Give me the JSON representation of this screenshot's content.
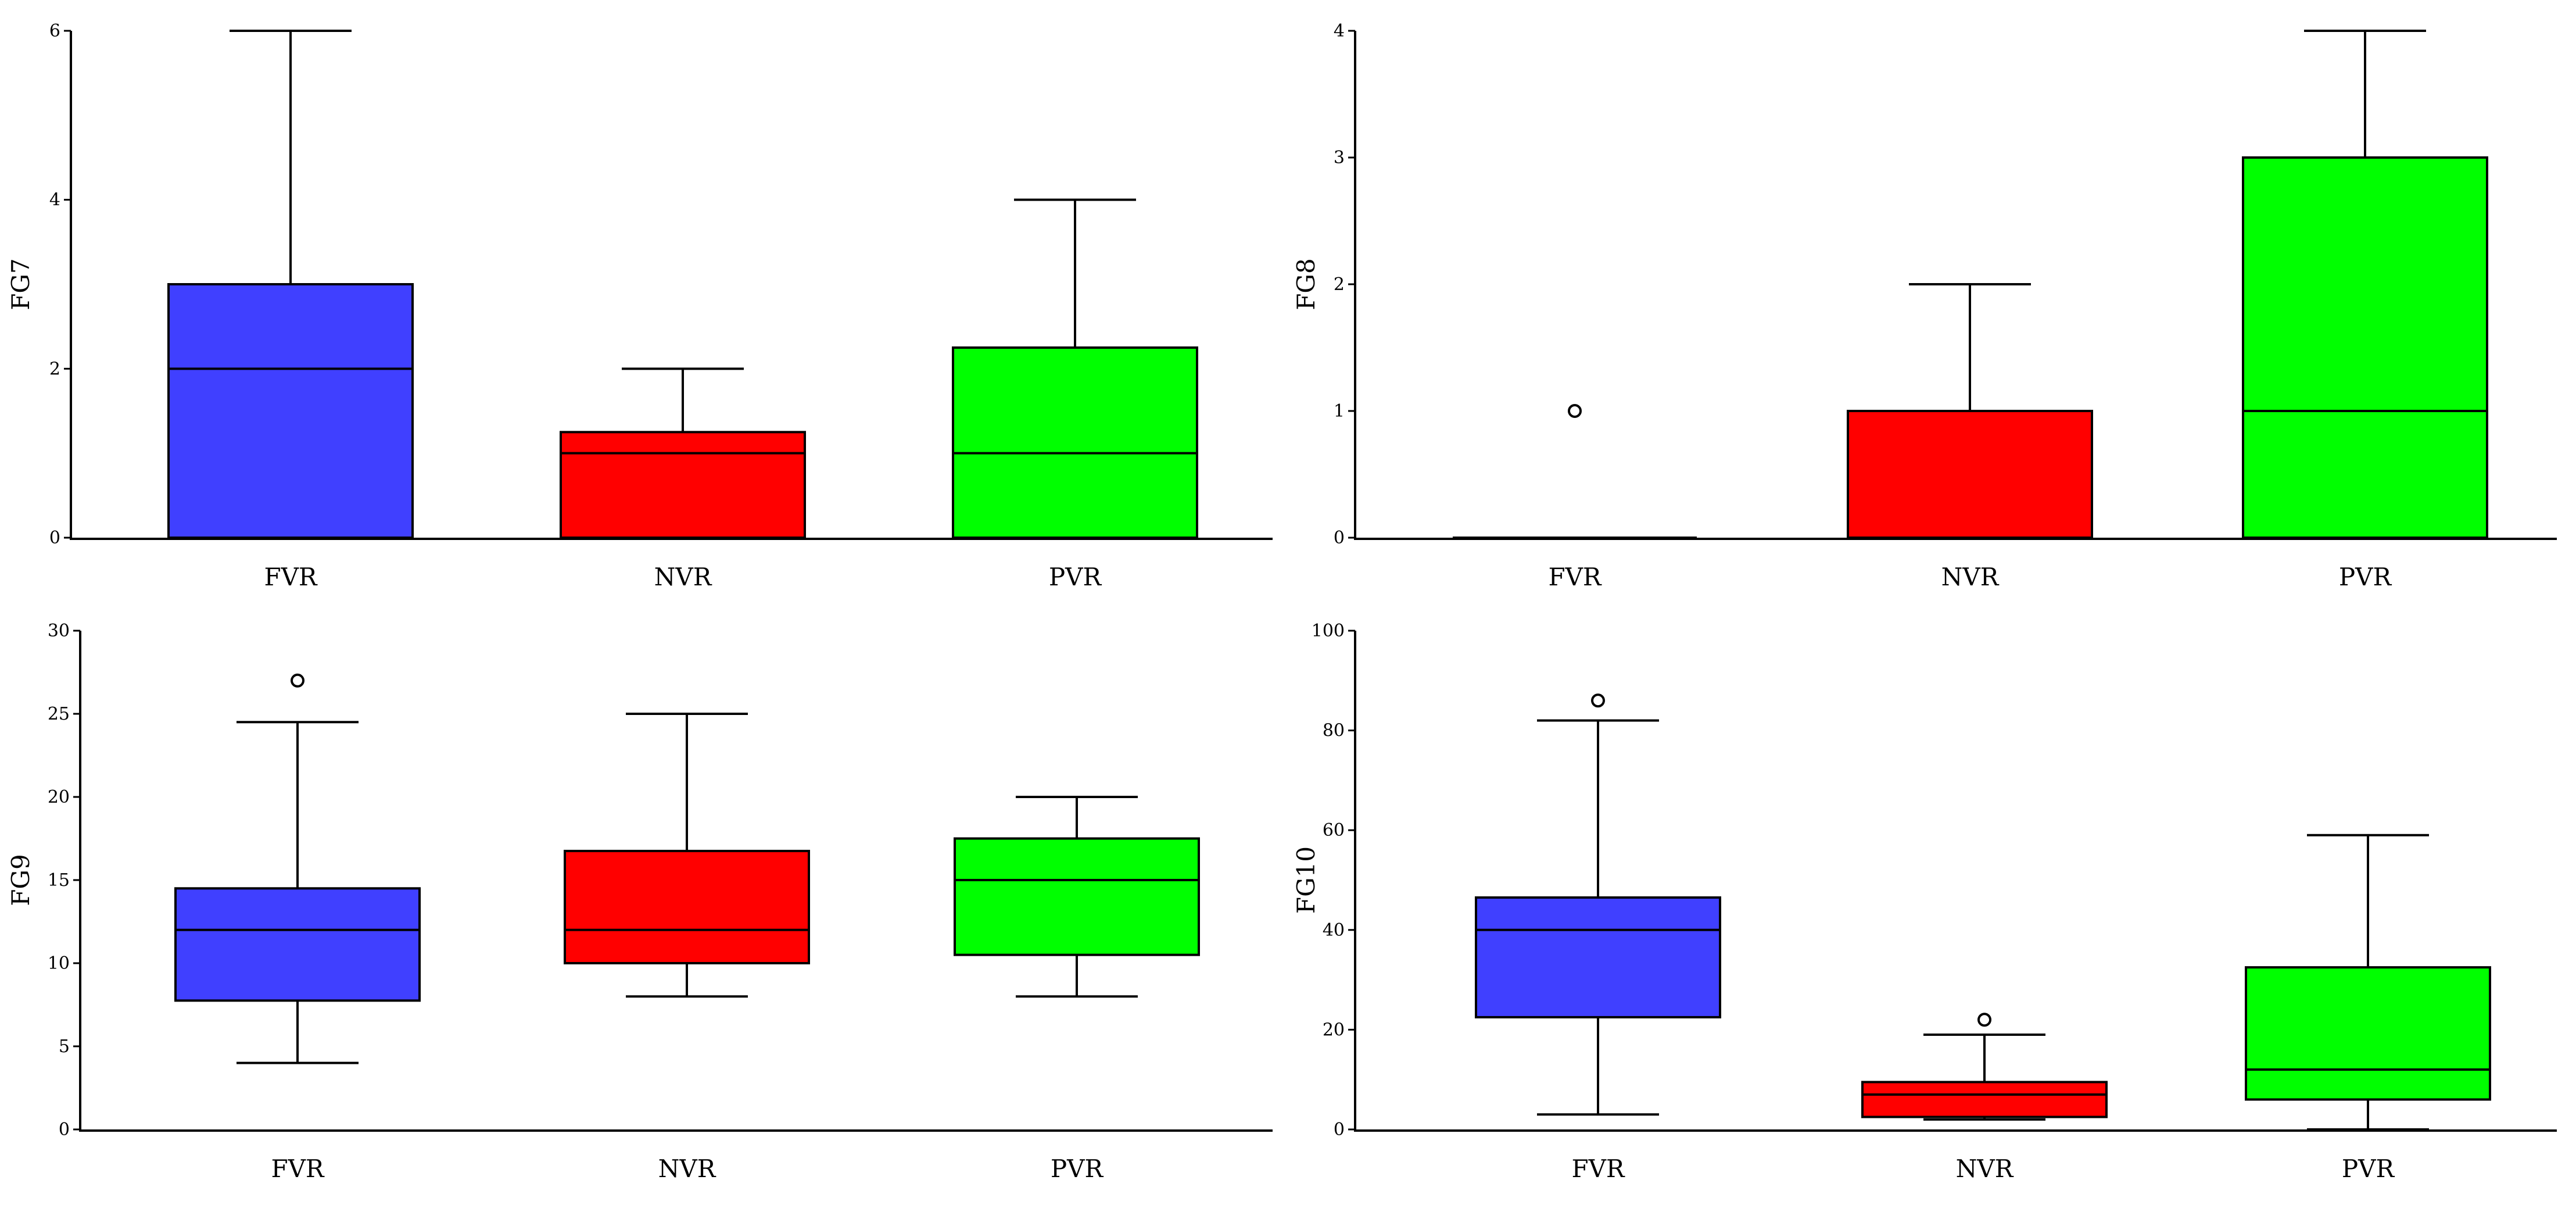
{
  "colors": {
    "FVR": "#4040ff",
    "NVR": "#ff0000",
    "PVR": "#00ff00",
    "stroke": "#000000",
    "background": "#ffffff"
  },
  "chart_data": [
    {
      "type": "box",
      "ylabel": "FG7",
      "categories": [
        "FVR",
        "NVR",
        "PVR"
      ],
      "ylim": [
        0,
        6
      ],
      "yticks": [
        0,
        2,
        4,
        6
      ],
      "ytick_labels": [
        "0",
        "2",
        "4",
        "6"
      ],
      "boxes": [
        {
          "name": "FVR",
          "whisker_low": 0,
          "q1": 0,
          "median": 2,
          "q3": 3,
          "whisker_high": 6,
          "outliers": []
        },
        {
          "name": "NVR",
          "whisker_low": 0,
          "q1": 0,
          "median": 1,
          "q3": 1.25,
          "whisker_high": 2,
          "outliers": []
        },
        {
          "name": "PVR",
          "whisker_low": 0,
          "q1": 0,
          "median": 1,
          "q3": 2.25,
          "whisker_high": 4,
          "outliers": []
        }
      ]
    },
    {
      "type": "box",
      "ylabel": "FG8",
      "categories": [
        "FVR",
        "NVR",
        "PVR"
      ],
      "ylim": [
        0,
        4
      ],
      "yticks": [
        0,
        1,
        2,
        3,
        4
      ],
      "ytick_labels": [
        "0",
        "1",
        "2",
        "3",
        "4"
      ],
      "boxes": [
        {
          "name": "FVR",
          "whisker_low": 0,
          "q1": 0,
          "median": 0,
          "q3": 0,
          "whisker_high": 0,
          "outliers": [
            1
          ]
        },
        {
          "name": "NVR",
          "whisker_low": 0,
          "q1": 0,
          "median": 0,
          "q3": 1,
          "whisker_high": 2,
          "outliers": []
        },
        {
          "name": "PVR",
          "whisker_low": 0,
          "q1": 0,
          "median": 1,
          "q3": 3,
          "whisker_high": 4,
          "outliers": []
        }
      ]
    },
    {
      "type": "box",
      "ylabel": "FG9",
      "categories": [
        "FVR",
        "NVR",
        "PVR"
      ],
      "ylim": [
        0,
        30
      ],
      "yticks": [
        0,
        5,
        10,
        15,
        20,
        25,
        30
      ],
      "ytick_labels": [
        "0",
        "5",
        "10",
        "15",
        "20",
        "25",
        "30"
      ],
      "boxes": [
        {
          "name": "FVR",
          "whisker_low": 4,
          "q1": 7.75,
          "median": 12,
          "q3": 14.5,
          "whisker_high": 24.5,
          "outliers": [
            27
          ]
        },
        {
          "name": "NVR",
          "whisker_low": 8,
          "q1": 10,
          "median": 12,
          "q3": 16.75,
          "whisker_high": 25,
          "outliers": []
        },
        {
          "name": "PVR",
          "whisker_low": 8,
          "q1": 10.5,
          "median": 15,
          "q3": 17.5,
          "whisker_high": 20,
          "outliers": []
        }
      ]
    },
    {
      "type": "box",
      "ylabel": "FG10",
      "categories": [
        "FVR",
        "NVR",
        "PVR"
      ],
      "ylim": [
        0,
        100
      ],
      "yticks": [
        0,
        20,
        40,
        60,
        80,
        100
      ],
      "ytick_labels": [
        "0",
        "20",
        "40",
        "60",
        "80",
        "100"
      ],
      "boxes": [
        {
          "name": "FVR",
          "whisker_low": 3,
          "q1": 22.5,
          "median": 40,
          "q3": 46.5,
          "whisker_high": 82,
          "outliers": [
            86
          ]
        },
        {
          "name": "NVR",
          "whisker_low": 2,
          "q1": 2.5,
          "median": 7,
          "q3": 9.5,
          "whisker_high": 19,
          "outliers": [
            22
          ]
        },
        {
          "name": "PVR",
          "whisker_low": 0,
          "q1": 6,
          "median": 12,
          "q3": 32.5,
          "whisker_high": 59,
          "outliers": []
        }
      ]
    }
  ]
}
